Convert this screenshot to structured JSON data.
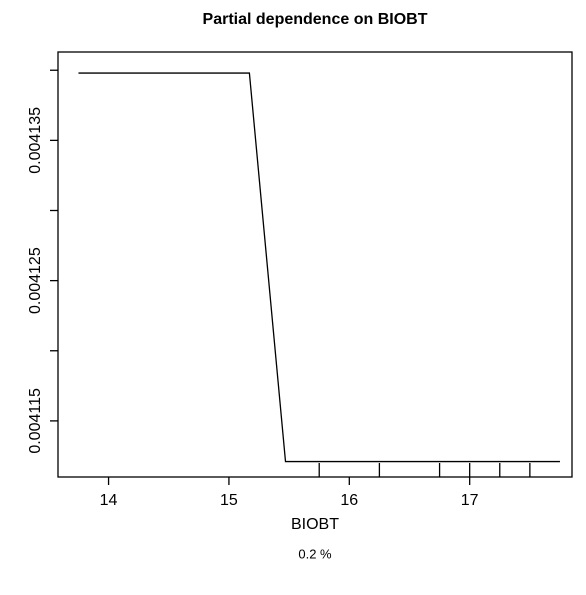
{
  "chart_data": {
    "type": "line",
    "title": "Partial dependence on BIOBT",
    "x_label": "BIOBT",
    "subtitle": "0.2 %",
    "x": [
      13.75,
      15.17,
      15.47,
      17.75
    ],
    "series": [
      {
        "color": "#000000",
        "values": [
          0.0041398,
          0.0041398,
          0.0041121,
          0.0041121
        ]
      }
    ],
    "xlim": [
      13.58,
      17.85
    ],
    "ylim": [
      0.004111,
      0.0041413
    ],
    "xticks": [
      14,
      15,
      16,
      17
    ],
    "yticks": [
      0.004115,
      0.004125,
      0.004135
    ],
    "yticks_unlabeled": [
      0.00412,
      0.00413,
      0.00414
    ],
    "rug": [
      15.75,
      16.25,
      16.75,
      17.0,
      17.25,
      17.5
    ]
  }
}
